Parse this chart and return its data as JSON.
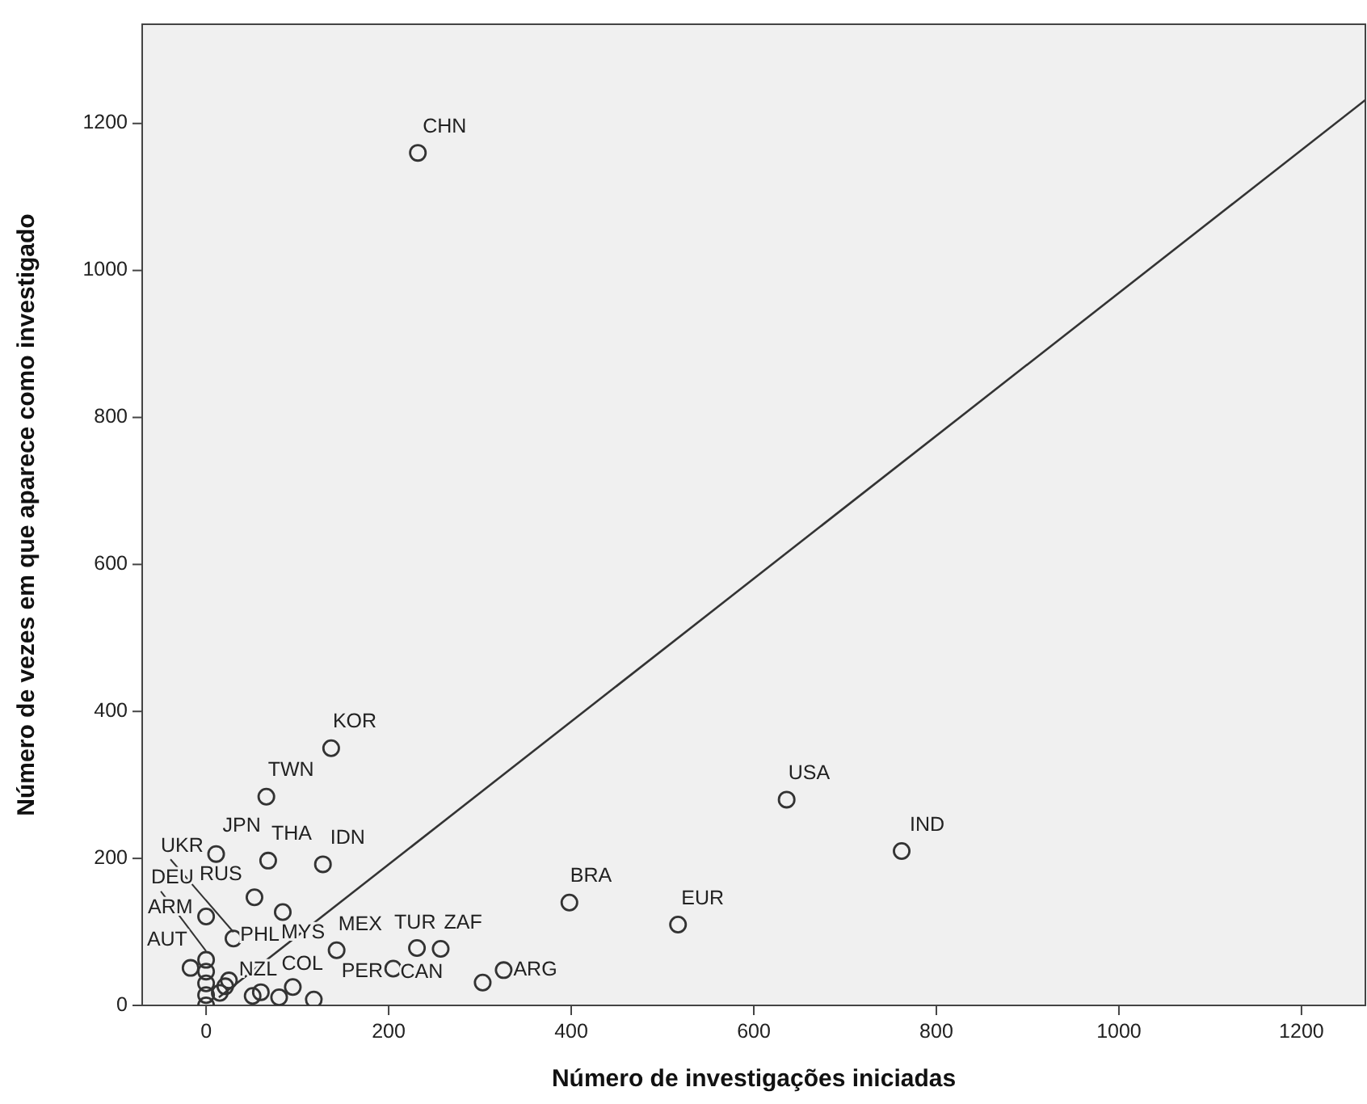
{
  "chart_data": {
    "type": "scatter",
    "xlabel": "Número de investigações iniciadas",
    "ylabel": "Número de vezes em que aparece como investigado",
    "xlim": [
      -70,
      1270
    ],
    "ylim": [
      0,
      1335
    ],
    "xticks": [
      0,
      200,
      400,
      600,
      800,
      1000,
      1200
    ],
    "yticks": [
      0,
      200,
      400,
      600,
      800,
      1000,
      1200
    ],
    "grid": false,
    "marker": "circle",
    "series": [
      {
        "color": "#333333",
        "x": [
          232,
          137,
          66,
          636,
          762,
          11,
          68,
          128,
          53,
          84,
          0,
          30,
          143,
          231,
          257,
          398,
          517,
          -17,
          205,
          326,
          303,
          95,
          60,
          51,
          80,
          118,
          25,
          21,
          15,
          0,
          0,
          0,
          0,
          0
        ],
        "values": [
          1160,
          350,
          284,
          280,
          210,
          206,
          197,
          192,
          147,
          127,
          121,
          91,
          75,
          78,
          77,
          140,
          110,
          51,
          50,
          48,
          31,
          25,
          18,
          13,
          11,
          8,
          34,
          26,
          17,
          62,
          46,
          30,
          14,
          0
        ]
      },
      {
        "type": "line",
        "color": "#333333",
        "marker": "none",
        "x": [
          14,
          1270
        ],
        "values": [
          11,
          1232
        ]
      }
    ],
    "annotations": [
      {
        "text": "CHN",
        "x": 232,
        "y": 1160
      },
      {
        "text": "KOR",
        "x": 137,
        "y": 350
      },
      {
        "text": "TWN",
        "x": 66,
        "y": 284
      },
      {
        "text": "USA",
        "x": 636,
        "y": 280
      },
      {
        "text": "IND",
        "x": 762,
        "y": 210
      },
      {
        "text": "JPN",
        "x": 11,
        "y": 206
      },
      {
        "text": "THA",
        "x": 68,
        "y": 197
      },
      {
        "text": "IDN",
        "x": 128,
        "y": 192
      },
      {
        "text": "UKR",
        "x": 30,
        "y": 91
      },
      {
        "text": "DEU",
        "x": 0,
        "y": 65
      },
      {
        "text": "RUS",
        "x": 53,
        "y": 147
      },
      {
        "text": "ARM",
        "x": 0,
        "y": 121
      },
      {
        "text": "AUT",
        "x": -17,
        "y": 51
      },
      {
        "text": "PHL",
        "x": 25,
        "y": 34
      },
      {
        "text": "MYS",
        "x": 84,
        "y": 127
      },
      {
        "text": "MEX",
        "x": 143,
        "y": 75
      },
      {
        "text": "TUR",
        "x": 231,
        "y": 78
      },
      {
        "text": "ZAF",
        "x": 257,
        "y": 77
      },
      {
        "text": "BRA",
        "x": 398,
        "y": 140
      },
      {
        "text": "EUR",
        "x": 517,
        "y": 110
      },
      {
        "text": "PER",
        "x": 205,
        "y": 50
      },
      {
        "text": "CAN",
        "x": 303,
        "y": 31
      },
      {
        "text": "ARG",
        "x": 326,
        "y": 48
      },
      {
        "text": "NZL",
        "x": 21,
        "y": 26
      },
      {
        "text": "COL",
        "x": 95,
        "y": 25
      }
    ]
  }
}
